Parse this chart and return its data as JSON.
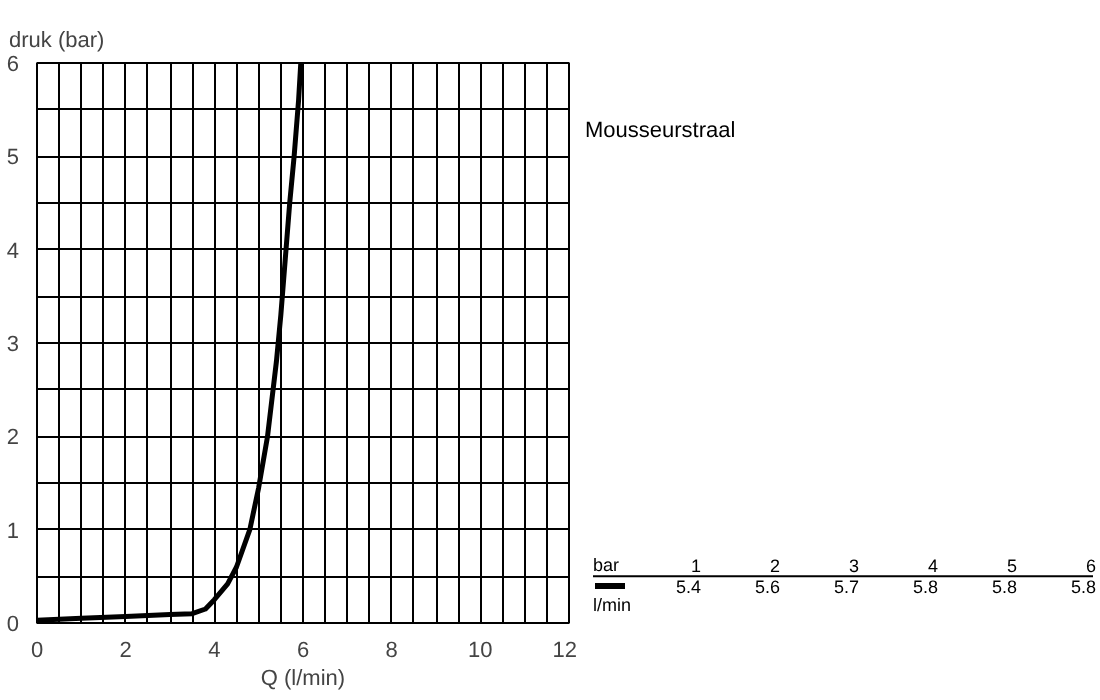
{
  "chart_data": {
    "type": "line",
    "title": "Mousseurstraal",
    "xlabel": "Q (l/min)",
    "ylabel": "druk (bar)",
    "x": [
      0,
      1,
      2,
      3,
      3.5,
      3.8,
      4,
      4.3,
      4.5,
      4.8,
      5,
      5.2,
      5.4,
      5.5,
      5.6,
      5.7,
      5.8,
      5.9,
      5.95
    ],
    "series": [
      {
        "color": "#000000",
        "values": [
          0.03,
          0.05,
          0.07,
          0.09,
          0.1,
          0.15,
          0.25,
          0.42,
          0.6,
          1.0,
          1.45,
          2.0,
          2.8,
          3.3,
          3.9,
          4.5,
          5.0,
          5.6,
          6.0
        ]
      }
    ],
    "xlim": [
      0,
      12
    ],
    "ylim": [
      0,
      6
    ],
    "xticks": [
      0,
      {
        "value": 0.5,
        "label": null
      },
      {
        "value": 1,
        "label": null
      },
      {
        "value": 1.5,
        "label": null
      },
      2,
      {
        "value": 2.5,
        "label": null
      },
      {
        "value": 3,
        "label": null
      },
      {
        "value": 3.5,
        "label": null
      },
      4,
      {
        "value": 4.5,
        "label": null
      },
      {
        "value": 5,
        "label": null
      },
      {
        "value": 5.5,
        "label": null
      },
      6,
      {
        "value": 6.5,
        "label": null
      },
      {
        "value": 7,
        "label": null
      },
      {
        "value": 7.5,
        "label": null
      },
      8,
      {
        "value": 8.5,
        "label": null
      },
      {
        "value": 9,
        "label": null
      },
      {
        "value": 9.5,
        "label": null
      },
      10,
      {
        "value": 10.5,
        "label": null
      },
      {
        "value": 11,
        "label": null
      },
      {
        "value": 11.5,
        "label": null
      },
      12
    ],
    "yticks": [
      0,
      {
        "value": 0.5,
        "label": null
      },
      1,
      {
        "value": 1.5,
        "label": null
      },
      2,
      {
        "value": 2.5,
        "label": null
      },
      3,
      {
        "value": 3.5,
        "label": null
      },
      4,
      {
        "value": 4.5,
        "label": null
      },
      5,
      {
        "value": 5.5,
        "label": null
      },
      6
    ],
    "grid": true,
    "marker": "none",
    "line_style": "solid",
    "annotations": [
      "bar",
      "l/min",
      "1",
      "2",
      "3",
      "4",
      "5",
      "6",
      "5.4",
      "5.6",
      "5.7",
      "5.8",
      "5.8",
      "5.8"
    ]
  }
}
